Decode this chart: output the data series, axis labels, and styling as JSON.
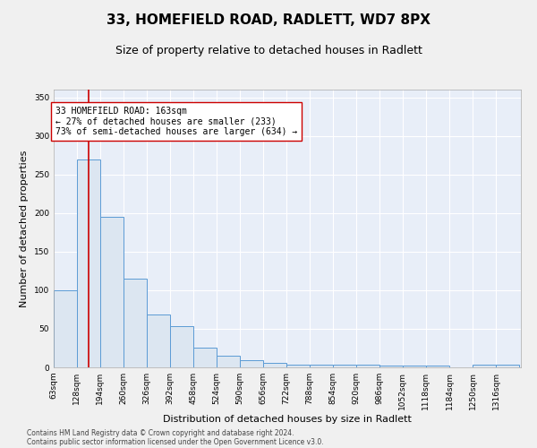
{
  "title": "33, HOMEFIELD ROAD, RADLETT, WD7 8PX",
  "subtitle": "Size of property relative to detached houses in Radlett",
  "xlabel": "Distribution of detached houses by size in Radlett",
  "ylabel": "Number of detached properties",
  "footnote1": "Contains HM Land Registry data © Crown copyright and database right 2024.",
  "footnote2": "Contains public sector information licensed under the Open Government Licence v3.0.",
  "property_label": "33 HOMEFIELD ROAD: 163sqm",
  "annotation_line1": "← 27% of detached houses are smaller (233)",
  "annotation_line2": "73% of semi-detached houses are larger (634) →",
  "property_size_sqm": 163,
  "bar_edge_color": "#5b9bd5",
  "bar_face_color": "#dce6f1",
  "vline_color": "#cc0000",
  "background_color": "#e8eef8",
  "grid_color": "#ffffff",
  "fig_background": "#f0f0f0",
  "bin_starts": [
    63,
    128,
    194,
    260,
    326,
    392,
    458,
    524,
    590,
    656,
    722,
    788,
    854,
    920,
    986,
    1052,
    1118,
    1184,
    1250,
    1316
  ],
  "bin_width": 66,
  "bar_heights": [
    100,
    270,
    195,
    115,
    68,
    54,
    26,
    15,
    9,
    6,
    4,
    4,
    4,
    4,
    2,
    2,
    2,
    0,
    3,
    3
  ],
  "ylim": [
    0,
    360
  ],
  "yticks": [
    0,
    50,
    100,
    150,
    200,
    250,
    300,
    350
  ],
  "annotation_box_color": "#ffffff",
  "annotation_box_edge": "#cc0000",
  "title_fontsize": 11,
  "subtitle_fontsize": 9,
  "axis_label_fontsize": 8,
  "tick_fontsize": 6.5,
  "annotation_fontsize": 7,
  "footnote_fontsize": 5.5
}
